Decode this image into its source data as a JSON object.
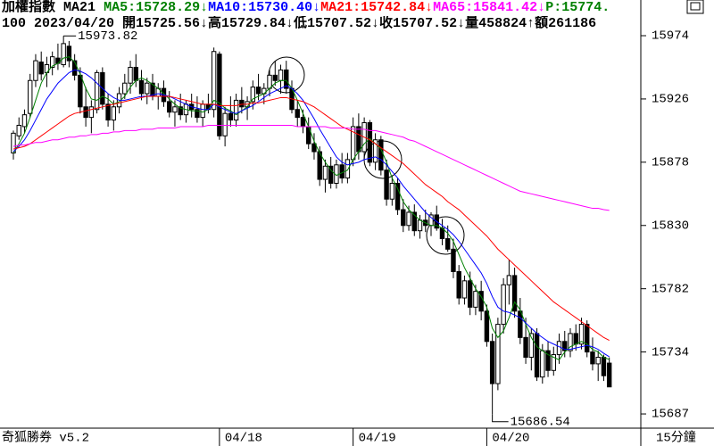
{
  "chart_data": {
    "type": "candlestick",
    "title": "加權指數",
    "indicator": "MA21",
    "price_label": "P:15774.",
    "price_color": "#008000",
    "info_line": "100 2023/04/20 開15725.56↓高15729.84↓低15707.52↓收15707.52↓量458824↑額261186",
    "software": "奇狐勝券 v5.2",
    "period": "15分鐘",
    "up_color": "#ffffff",
    "down_color": "#000000",
    "ylim": [
      15676.2,
      15988.9
    ],
    "yticks": [
      15974,
      15926,
      15878,
      15830,
      15782,
      15734,
      15687
    ],
    "categories": [
      null,
      null,
      null,
      null,
      null,
      null,
      null,
      null,
      null,
      null,
      null,
      null,
      null,
      null,
      null,
      null,
      null,
      null,
      null,
      null,
      null,
      null,
      null,
      null,
      null,
      null,
      null,
      null,
      null,
      null,
      null,
      null,
      null,
      null,
      null,
      null,
      null,
      "04/18",
      null,
      null,
      null,
      null,
      null,
      null,
      null,
      null,
      null,
      null,
      null,
      null,
      null,
      null,
      null,
      null,
      null,
      null,
      null,
      null,
      null,
      null,
      null,
      "04/19",
      null,
      null,
      null,
      null,
      null,
      null,
      null,
      null,
      null,
      null,
      null,
      null,
      null,
      null,
      null,
      null,
      null,
      null,
      null,
      null,
      null,
      null,
      null,
      "04/20",
      null,
      null,
      null,
      null,
      null,
      null,
      null,
      null,
      null,
      null,
      null,
      null,
      null,
      null,
      null,
      null,
      null,
      null,
      null,
      null,
      null,
      null
    ],
    "ohlc": [
      [
        15885,
        15902,
        15880,
        15900
      ],
      [
        15898,
        15912,
        15895,
        15906
      ],
      [
        15905,
        15918,
        15900,
        15914
      ],
      [
        15915,
        15945,
        15912,
        15940
      ],
      [
        15940,
        15960,
        15935,
        15955
      ],
      [
        15954,
        15962,
        15940,
        15945
      ],
      [
        15946,
        15958,
        15935,
        15952
      ],
      [
        15950,
        15962,
        15944,
        15958
      ],
      [
        15957,
        15968,
        15948,
        15953
      ],
      [
        15952,
        15973.82,
        15950,
        15968
      ],
      [
        15966,
        15970,
        15950,
        15955
      ],
      [
        15955,
        15960,
        15940,
        15944
      ],
      [
        15944,
        15950,
        15915,
        15920
      ],
      [
        15920,
        15935,
        15905,
        15912
      ],
      [
        15912,
        15925,
        15900,
        15920
      ],
      [
        15918,
        15948,
        15915,
        15946
      ],
      [
        15946,
        15950,
        15918,
        15922
      ],
      [
        15922,
        15930,
        15905,
        15910
      ],
      [
        15910,
        15925,
        15902,
        15920
      ],
      [
        15920,
        15935,
        15915,
        15930
      ],
      [
        15930,
        15945,
        15926,
        15938
      ],
      [
        15938,
        15955,
        15930,
        15950
      ],
      [
        15950,
        15960,
        15935,
        15940
      ],
      [
        15940,
        15948,
        15925,
        15930
      ],
      [
        15930,
        15942,
        15922,
        15938
      ],
      [
        15938,
        15945,
        15925,
        15928
      ],
      [
        15928,
        15938,
        15918,
        15934
      ],
      [
        15934,
        15940,
        15920,
        15924
      ],
      [
        15924,
        15932,
        15912,
        15916
      ],
      [
        15916,
        15925,
        15905,
        15920
      ],
      [
        15920,
        15930,
        15910,
        15914
      ],
      [
        15914,
        15925,
        15908,
        15922
      ],
      [
        15922,
        15930,
        15912,
        15918
      ],
      [
        15918,
        15928,
        15908,
        15912
      ],
      [
        15912,
        15925,
        15905,
        15922
      ],
      [
        15922,
        15930,
        15915,
        15918
      ],
      [
        15918,
        15965,
        15912,
        15962
      ],
      [
        15960,
        15962,
        15895,
        15898
      ],
      [
        15898,
        15920,
        15890,
        15915
      ],
      [
        15915,
        15928,
        15905,
        15910
      ],
      [
        15910,
        15930,
        15905,
        15925
      ],
      [
        15925,
        15935,
        15915,
        15920
      ],
      [
        15920,
        15928,
        15910,
        15924
      ],
      [
        15924,
        15940,
        15918,
        15935
      ],
      [
        15935,
        15945,
        15925,
        15930
      ],
      [
        15930,
        15938,
        15922,
        15934
      ],
      [
        15934,
        15948,
        15928,
        15944
      ],
      [
        15944,
        15955,
        15936,
        15940
      ],
      [
        15940,
        15952,
        15930,
        15948
      ],
      [
        15948,
        15955,
        15930,
        15934
      ],
      [
        15934,
        15940,
        15915,
        15918
      ],
      [
        15918,
        15925,
        15905,
        15912
      ],
      [
        15912,
        15918,
        15900,
        15905
      ],
      [
        15905,
        15912,
        15888,
        15892
      ],
      [
        15892,
        15900,
        15880,
        15886
      ],
      [
        15886,
        15890,
        15860,
        15865
      ],
      [
        15865,
        15880,
        15855,
        15875
      ],
      [
        15875,
        15882,
        15858,
        15862
      ],
      [
        15862,
        15880,
        15858,
        15876
      ],
      [
        15876,
        15885,
        15862,
        15866
      ],
      [
        15866,
        15885,
        15862,
        15880
      ],
      [
        15880,
        15912,
        15875,
        15905
      ],
      [
        15905,
        15915,
        15880,
        15886
      ],
      [
        15886,
        15912,
        15880,
        15908
      ],
      [
        15908,
        15910,
        15875,
        15878
      ],
      [
        15878,
        15900,
        15872,
        15895
      ],
      [
        15895,
        15898,
        15868,
        15872
      ],
      [
        15872,
        15880,
        15845,
        15850
      ],
      [
        15850,
        15868,
        15845,
        15862
      ],
      [
        15862,
        15866,
        15838,
        15842
      ],
      [
        15842,
        15850,
        15825,
        15830
      ],
      [
        15830,
        15845,
        15826,
        15840
      ],
      [
        15840,
        15846,
        15822,
        15826
      ],
      [
        15826,
        15838,
        15820,
        15834
      ],
      [
        15834,
        15842,
        15825,
        15830
      ],
      [
        15830,
        15840,
        15822,
        15838
      ],
      [
        15838,
        15845,
        15826,
        15828
      ],
      [
        15828,
        15835,
        15815,
        15820
      ],
      [
        15820,
        15830,
        15810,
        15812
      ],
      [
        15812,
        15820,
        15790,
        15795
      ],
      [
        15795,
        15800,
        15770,
        15775
      ],
      [
        15775,
        15792,
        15770,
        15788
      ],
      [
        15788,
        15795,
        15762,
        15768
      ],
      [
        15768,
        15785,
        15762,
        15780
      ],
      [
        15780,
        15788,
        15758,
        15765
      ],
      [
        15765,
        15770,
        15738,
        15742
      ],
      [
        15742,
        15748,
        15686.54,
        15710
      ],
      [
        15710,
        15760,
        15705,
        15755
      ],
      [
        15755,
        15790,
        15748,
        15785
      ],
      [
        15785,
        15804,
        15770,
        15792
      ],
      [
        15792,
        15798,
        15760,
        15765
      ],
      [
        15765,
        15775,
        15740,
        15745
      ],
      [
        15745,
        15760,
        15725,
        15730
      ],
      [
        15730,
        15752,
        15720,
        15748
      ],
      [
        15748,
        15752,
        15712,
        15715
      ],
      [
        15715,
        15740,
        15710,
        15735
      ],
      [
        15735,
        15742,
        15715,
        15720
      ],
      [
        15720,
        15738,
        15716,
        15732
      ],
      [
        15732,
        15748,
        15725,
        15742
      ],
      [
        15742,
        15750,
        15730,
        15735
      ],
      [
        15735,
        15752,
        15730,
        15748
      ],
      [
        15748,
        15755,
        15735,
        15740
      ],
      [
        15740,
        15760,
        15736,
        15755
      ],
      [
        15755,
        15758,
        15730,
        15734
      ],
      [
        15734,
        15745,
        15720,
        15725
      ],
      [
        15725,
        15735,
        15712,
        15730
      ],
      [
        15730,
        15732,
        15712,
        15716
      ],
      [
        15725.56,
        15729.84,
        15707.52,
        15707.52
      ]
    ],
    "series": [
      {
        "name": "MA5",
        "label": "MA5:15728.29↓",
        "color": "#008000",
        "values": [
          15885,
          15892,
          15900,
          15912,
          15925,
          15938,
          15946,
          15951,
          15953,
          15957,
          15958,
          15954,
          15945,
          15934,
          15926,
          15925,
          15928,
          15926,
          15922,
          15924,
          15928,
          15935,
          15940,
          15942,
          15940,
          15937,
          15934,
          15930,
          15926,
          15922,
          15919,
          15918,
          15917,
          15917,
          15916,
          15918,
          15925,
          15923,
          15919,
          15917,
          15914,
          15917,
          15920,
          15926,
          15928,
          15930,
          15934,
          15938,
          15940,
          15940,
          15934,
          15925,
          15915,
          15905,
          15894,
          15885,
          15878,
          15872,
          15868,
          15870,
          15872,
          15880,
          15886,
          15892,
          15896,
          15892,
          15888,
          15878,
          15866,
          15858,
          15848,
          15842,
          15838,
          15834,
          15832,
          15830,
          15830,
          15828,
          15824,
          15818,
          15808,
          15798,
          15790,
          15782,
          15776,
          15768,
          15752,
          15745,
          15750,
          15760,
          15772,
          15766,
          15755,
          15745,
          15738,
          15735,
          15732,
          15730,
          15728,
          15734,
          15738,
          15740,
          15742,
          15740,
          15736,
          15734,
          15730,
          15728.29
        ]
      },
      {
        "name": "MA10",
        "label": "MA10:15730.40↓",
        "color": "#0000ff",
        "values": [
          15886,
          15890,
          15895,
          15902,
          15910,
          15918,
          15926,
          15932,
          15938,
          15942,
          15946,
          15948,
          15947,
          15945,
          15942,
          15938,
          15934,
          15930,
          15927,
          15925,
          15925,
          15926,
          15927,
          15928,
          15928,
          15929,
          15930,
          15929,
          15928,
          15926,
          15924,
          15922,
          15920,
          15919,
          15918,
          15918,
          15922,
          15920,
          15918,
          15916,
          15915,
          15917,
          15919,
          15921,
          15924,
          15927,
          15930,
          15932,
          15934,
          15936,
          15934,
          15930,
          15925,
          15918,
          15911,
          15903,
          15896,
          15889,
          15882,
          15878,
          15876,
          15877,
          15878,
          15880,
          15881,
          15882,
          15880,
          15876,
          15871,
          15866,
          15860,
          15855,
          15850,
          15845,
          15840,
          15836,
          15833,
          15830,
          15827,
          15823,
          15818,
          15812,
          15806,
          15800,
          15794,
          15786,
          15776,
          15768,
          15765,
          15764,
          15762,
          15760,
          15756,
          15752,
          15748,
          15745,
          15742,
          15740,
          15738,
          15736,
          15736,
          15737,
          15738,
          15739,
          15738,
          15736,
          15733,
          15730.4
        ]
      },
      {
        "name": "MA21",
        "label": "MA21:15742.84↓",
        "color": "#ff0000",
        "values": [
          15888,
          15889,
          15890,
          15892,
          15895,
          15898,
          15901,
          15904,
          15907,
          15910,
          15913,
          15915,
          15916,
          15917,
          15918,
          15919,
          15920,
          15921,
          15922,
          15923,
          15924,
          15925,
          15926,
          15927,
          15928,
          15928,
          15928,
          15928,
          15928,
          15927,
          15926,
          15925,
          15924,
          15923,
          15922,
          15922,
          15922,
          15921,
          15921,
          15921,
          15921,
          15922,
          15922,
          15923,
          15923,
          15924,
          15925,
          15926,
          15927,
          15927,
          15926,
          15925,
          15924,
          15922,
          15920,
          15917,
          15914,
          15911,
          15908,
          15905,
          15903,
          15901,
          15899,
          15897,
          15895,
          15892,
          15889,
          15886,
          15883,
          15880,
          15877,
          15873,
          15869,
          15865,
          15861,
          15858,
          15855,
          15852,
          15848,
          15845,
          15842,
          15838,
          15834,
          15830,
          15826,
          15822,
          15817,
          15812,
          15808,
          15804,
          15800,
          15796,
          15792,
          15788,
          15784,
          15780,
          15776,
          15772,
          15769,
          15766,
          15763,
          15760,
          15757,
          15754,
          15751,
          15748,
          15745,
          15742.84
        ]
      },
      {
        "name": "MA65",
        "label": "MA65:15841.42↓",
        "color": "#ff00ff",
        "values": [
          15890,
          15891,
          15891,
          15892,
          15893,
          15893,
          15894,
          15895,
          15895,
          15896,
          15897,
          15897,
          15898,
          15898,
          15899,
          15899,
          15900,
          15900,
          15901,
          15901,
          15902,
          15902,
          15902,
          15903,
          15903,
          15903,
          15904,
          15904,
          15904,
          15904,
          15905,
          15905,
          15905,
          15905,
          15905,
          15906,
          15906,
          15906,
          15906,
          15906,
          15906,
          15906,
          15906,
          15906,
          15906,
          15906,
          15906,
          15906,
          15906,
          15906,
          15906,
          15905,
          15905,
          15905,
          15905,
          15905,
          15905,
          15904,
          15904,
          15904,
          15904,
          15903,
          15903,
          15903,
          15902,
          15902,
          15901,
          15900,
          15899,
          15898,
          15897,
          15895,
          15894,
          15892,
          15890,
          15888,
          15886,
          15884,
          15882,
          15880,
          15878,
          15876,
          15874,
          15872,
          15870,
          15868,
          15866,
          15864,
          15862,
          15860,
          15858,
          15856,
          15855,
          15854,
          15853,
          15852,
          15851,
          15850,
          15849,
          15848,
          15847,
          15846,
          15845,
          15844,
          15843,
          15843,
          15842,
          15841.42
        ]
      }
    ]
  }
}
